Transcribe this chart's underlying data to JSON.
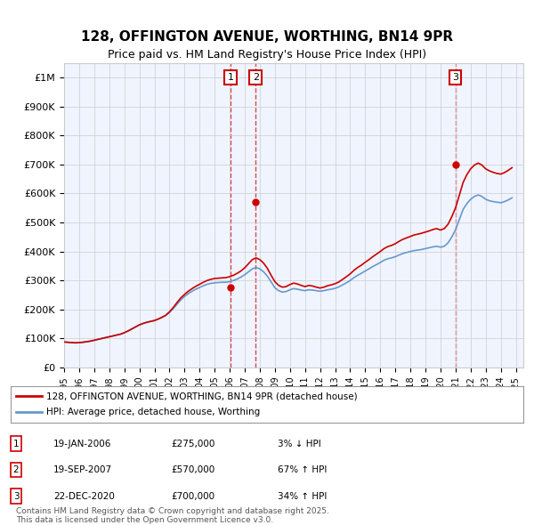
{
  "title": "128, OFFINGTON AVENUE, WORTHING, BN14 9PR",
  "subtitle": "Price paid vs. HM Land Registry's House Price Index (HPI)",
  "ylabel_ticks": [
    "£0",
    "£100K",
    "£200K",
    "£300K",
    "£400K",
    "£500K",
    "£600K",
    "£700K",
    "£800K",
    "£900K",
    "£1M"
  ],
  "ytick_values": [
    0,
    100000,
    200000,
    300000,
    400000,
    500000,
    600000,
    700000,
    800000,
    900000,
    1000000
  ],
  "ylim": [
    0,
    1050000
  ],
  "xlim_start": 1995.0,
  "xlim_end": 2025.5,
  "hpi_color": "#6699cc",
  "price_color": "#cc0000",
  "transaction_color": "#cc0000",
  "vline_color": "#cc0000",
  "background_color": "#f0f4ff",
  "plot_bg_color": "#f0f4ff",
  "grid_color": "#cccccc",
  "transactions": [
    {
      "label": "1",
      "date_num": 2006.05,
      "price": 275000
    },
    {
      "label": "2",
      "date_num": 2007.72,
      "price": 570000
    },
    {
      "label": "3",
      "date_num": 2020.98,
      "price": 700000
    }
  ],
  "legend_line1": "128, OFFINGTON AVENUE, WORTHING, BN14 9PR (detached house)",
  "legend_line2": "HPI: Average price, detached house, Worthing",
  "table_rows": [
    [
      "1",
      "19-JAN-2006",
      "£275,000",
      "3% ↓ HPI"
    ],
    [
      "2",
      "19-SEP-2007",
      "£570,000",
      "67% ↑ HPI"
    ],
    [
      "3",
      "22-DEC-2020",
      "£700,000",
      "34% ↑ HPI"
    ]
  ],
  "footer": "Contains HM Land Registry data © Crown copyright and database right 2025.\nThis data is licensed under the Open Government Licence v3.0.",
  "hpi_data": {
    "years": [
      1995.0,
      1995.25,
      1995.5,
      1995.75,
      1996.0,
      1996.25,
      1996.5,
      1996.75,
      1997.0,
      1997.25,
      1997.5,
      1997.75,
      1998.0,
      1998.25,
      1998.5,
      1998.75,
      1999.0,
      1999.25,
      1999.5,
      1999.75,
      2000.0,
      2000.25,
      2000.5,
      2000.75,
      2001.0,
      2001.25,
      2001.5,
      2001.75,
      2002.0,
      2002.25,
      2002.5,
      2002.75,
      2003.0,
      2003.25,
      2003.5,
      2003.75,
      2004.0,
      2004.25,
      2004.5,
      2004.75,
      2005.0,
      2005.25,
      2005.5,
      2005.75,
      2006.0,
      2006.25,
      2006.5,
      2006.75,
      2007.0,
      2007.25,
      2007.5,
      2007.75,
      2008.0,
      2008.25,
      2008.5,
      2008.75,
      2009.0,
      2009.25,
      2009.5,
      2009.75,
      2010.0,
      2010.25,
      2010.5,
      2010.75,
      2011.0,
      2011.25,
      2011.5,
      2011.75,
      2012.0,
      2012.25,
      2012.5,
      2012.75,
      2013.0,
      2013.25,
      2013.5,
      2013.75,
      2014.0,
      2014.25,
      2014.5,
      2014.75,
      2015.0,
      2015.25,
      2015.5,
      2015.75,
      2016.0,
      2016.25,
      2016.5,
      2016.75,
      2017.0,
      2017.25,
      2017.5,
      2017.75,
      2018.0,
      2018.25,
      2018.5,
      2018.75,
      2019.0,
      2019.25,
      2019.5,
      2019.75,
      2020.0,
      2020.25,
      2020.5,
      2020.75,
      2021.0,
      2021.25,
      2021.5,
      2021.75,
      2022.0,
      2022.25,
      2022.5,
      2022.75,
      2023.0,
      2023.25,
      2023.5,
      2023.75,
      2024.0,
      2024.25,
      2024.5,
      2024.75
    ],
    "values": [
      88000,
      87000,
      86000,
      85000,
      86000,
      87000,
      89000,
      91000,
      94000,
      97000,
      100000,
      103000,
      106000,
      109000,
      112000,
      115000,
      120000,
      126000,
      133000,
      140000,
      147000,
      152000,
      156000,
      159000,
      162000,
      167000,
      173000,
      180000,
      190000,
      203000,
      218000,
      233000,
      245000,
      255000,
      263000,
      270000,
      276000,
      282000,
      287000,
      290000,
      292000,
      293000,
      294000,
      294000,
      296000,
      300000,
      305000,
      312000,
      320000,
      330000,
      340000,
      345000,
      340000,
      330000,
      315000,
      295000,
      275000,
      265000,
      260000,
      262000,
      268000,
      272000,
      270000,
      267000,
      265000,
      268000,
      267000,
      265000,
      263000,
      265000,
      268000,
      270000,
      273000,
      278000,
      285000,
      292000,
      300000,
      310000,
      318000,
      325000,
      333000,
      340000,
      348000,
      355000,
      362000,
      370000,
      375000,
      378000,
      382000,
      388000,
      393000,
      397000,
      400000,
      403000,
      405000,
      407000,
      410000,
      413000,
      416000,
      418000,
      415000,
      418000,
      430000,
      450000,
      475000,
      510000,
      545000,
      565000,
      580000,
      590000,
      595000,
      590000,
      580000,
      575000,
      572000,
      570000,
      568000,
      572000,
      578000,
      585000
    ]
  },
  "price_data": {
    "years": [
      1995.0,
      1995.25,
      1995.5,
      1995.75,
      1996.0,
      1996.25,
      1996.5,
      1996.75,
      1997.0,
      1997.25,
      1997.5,
      1997.75,
      1998.0,
      1998.25,
      1998.5,
      1998.75,
      1999.0,
      1999.25,
      1999.5,
      1999.75,
      2000.0,
      2000.25,
      2000.5,
      2000.75,
      2001.0,
      2001.25,
      2001.5,
      2001.75,
      2002.0,
      2002.25,
      2002.5,
      2002.75,
      2003.0,
      2003.25,
      2003.5,
      2003.75,
      2004.0,
      2004.25,
      2004.5,
      2004.75,
      2005.0,
      2005.25,
      2005.5,
      2005.75,
      2006.0,
      2006.25,
      2006.5,
      2006.75,
      2007.0,
      2007.25,
      2007.5,
      2007.75,
      2008.0,
      2008.25,
      2008.5,
      2008.75,
      2009.0,
      2009.25,
      2009.5,
      2009.75,
      2010.0,
      2010.25,
      2010.5,
      2010.75,
      2011.0,
      2011.25,
      2011.5,
      2011.75,
      2012.0,
      2012.25,
      2012.5,
      2012.75,
      2013.0,
      2013.25,
      2013.5,
      2013.75,
      2014.0,
      2014.25,
      2014.5,
      2014.75,
      2015.0,
      2015.25,
      2015.5,
      2015.75,
      2016.0,
      2016.25,
      2016.5,
      2016.75,
      2017.0,
      2017.25,
      2017.5,
      2017.75,
      2018.0,
      2018.25,
      2018.5,
      2018.75,
      2019.0,
      2019.25,
      2019.5,
      2019.75,
      2020.0,
      2020.25,
      2020.5,
      2020.75,
      2021.0,
      2021.25,
      2021.5,
      2021.75,
      2022.0,
      2022.25,
      2022.5,
      2022.75,
      2023.0,
      2023.25,
      2023.5,
      2023.75,
      2024.0,
      2024.25,
      2024.5,
      2024.75
    ],
    "values": [
      88000,
      87000,
      86000,
      85000,
      86000,
      87000,
      89000,
      91000,
      94000,
      97000,
      100000,
      103000,
      106000,
      109000,
      112000,
      115000,
      120000,
      126000,
      133000,
      140000,
      147000,
      152000,
      156000,
      159000,
      162000,
      167000,
      173000,
      180000,
      192000,
      207000,
      224000,
      240000,
      252000,
      263000,
      272000,
      280000,
      287000,
      294000,
      300000,
      304000,
      307000,
      308000,
      309000,
      310000,
      313000,
      318000,
      325000,
      333000,
      344000,
      358000,
      372000,
      378000,
      372000,
      360000,
      342000,
      318000,
      296000,
      283000,
      277000,
      279000,
      286000,
      291000,
      288000,
      283000,
      279000,
      283000,
      281000,
      277000,
      274000,
      277000,
      282000,
      285000,
      289000,
      295000,
      304000,
      313000,
      323000,
      335000,
      345000,
      353000,
      363000,
      372000,
      382000,
      391000,
      400000,
      410000,
      417000,
      421000,
      427000,
      435000,
      442000,
      447000,
      452000,
      457000,
      460000,
      463000,
      467000,
      471000,
      476000,
      479000,
      474000,
      479000,
      494000,
      520000,
      551000,
      594000,
      638000,
      665000,
      685000,
      698000,
      705000,
      698000,
      685000,
      678000,
      673000,
      669000,
      667000,
      672000,
      680000,
      689000
    ]
  }
}
